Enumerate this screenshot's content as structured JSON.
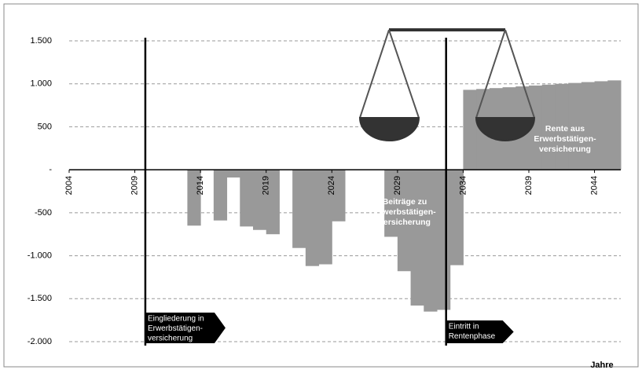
{
  "chart_data": {
    "type": "bar",
    "x": [
      2013,
      2014,
      2015,
      2016,
      2017,
      2018,
      2019,
      2020,
      2021,
      2022,
      2023,
      2024,
      2025,
      2026,
      2027,
      2028,
      2029,
      2030,
      2031,
      2032,
      2033,
      2034,
      2035,
      2036,
      2037,
      2038,
      2039,
      2040,
      2041,
      2042,
      2043,
      2044,
      2045
    ],
    "values": [
      -650,
      0,
      -590,
      -90,
      -660,
      -700,
      -750,
      0,
      -910,
      -1120,
      -1100,
      -600,
      0,
      0,
      0,
      -780,
      -1180,
      -1580,
      -1650,
      -1630,
      -1110,
      930,
      940,
      950,
      960,
      970,
      980,
      990,
      1000,
      1010,
      1020,
      1030,
      1040
    ],
    "color": "#999999",
    "xlim": [
      2004,
      2046
    ],
    "xticks": [
      2004,
      2009,
      2014,
      2019,
      2024,
      2029,
      2034,
      2039,
      2044
    ],
    "ylim": [
      -2000,
      1500
    ],
    "yticks": [
      {
        "value": 1500,
        "label": "1.500"
      },
      {
        "value": 1000,
        "label": "1.000"
      },
      500,
      {
        "value": 0,
        "label": "-"
      },
      -500,
      {
        "value": -1000,
        "label": "-1.000"
      },
      {
        "value": -1500,
        "label": "-1.500"
      },
      {
        "value": -2000,
        "label": "-2.000"
      }
    ],
    "grid": true,
    "x_label": "Jahre",
    "annotations": [
      {
        "lines": [
          "Eingliederung in",
          "Erwerbstätigen-",
          "versicherung"
        ],
        "x": 2009.8
      },
      {
        "lines": [
          "Eintritt in",
          "Rentenphase"
        ],
        "x": 2032.7
      }
    ],
    "labels": [
      {
        "lines": [
          "Beiträge zu",
          "Erwerbstätigen-",
          "versicherung"
        ]
      },
      {
        "lines": [
          "Rente aus",
          "Erwerbstätigen-",
          "versicherung"
        ]
      }
    ]
  }
}
